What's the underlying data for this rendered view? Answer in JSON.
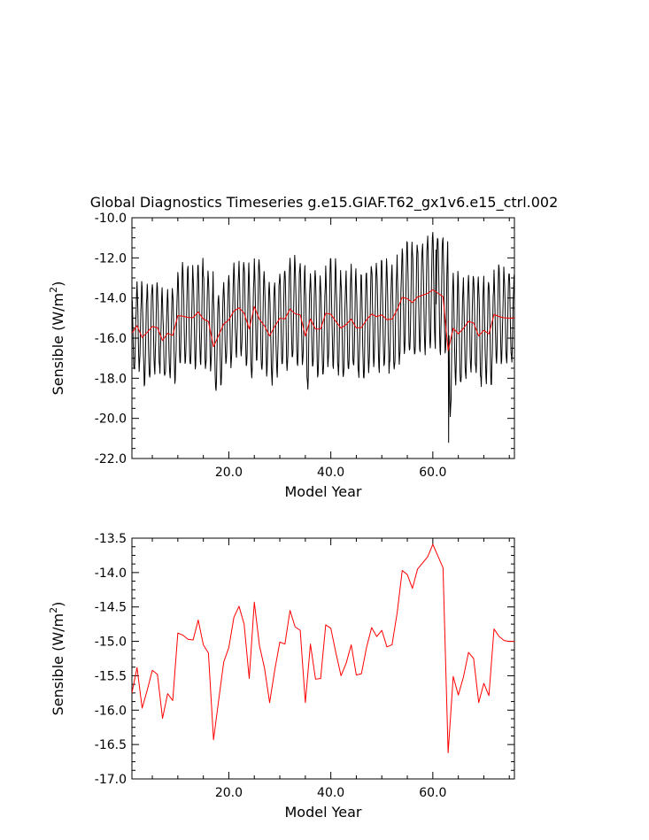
{
  "title": "Global Diagnostics Timeseries g.e15.GIAF.T62_gx1v6.e15_ctrl.002",
  "chart_data": [
    {
      "type": "line",
      "xlabel": "Model Year",
      "ylabel": "Sensible (W/m",
      "ylabel_sup": "2",
      "ylabel_close": ")",
      "xlim": [
        1,
        76
      ],
      "ylim": [
        -22.0,
        -10.0
      ],
      "x_ticks": [
        20,
        40,
        60
      ],
      "x_tick_labels": [
        "20.0",
        "40.0",
        "60.0"
      ],
      "y_ticks": [
        -22,
        -20,
        -18,
        -16,
        -14,
        -12,
        -10
      ],
      "y_tick_labels": [
        "-22.0",
        "-20.0",
        "-18.0",
        "-16.0",
        "-14.0",
        "-12.0",
        "-10.0"
      ],
      "grid": false,
      "series": [
        {
          "color": "#000000",
          "style": "monthly",
          "seasonal_amplitude": [
            2.0,
            2.2,
            2.3,
            2.4,
            2.2,
            2.1,
            2.0,
            2.1,
            2.2,
            2.5,
            2.5,
            2.4,
            2.4,
            2.5,
            2.5,
            2.4,
            2.3,
            2.3,
            2.2,
            2.3,
            2.2,
            2.4,
            2.6,
            2.5,
            2.6,
            2.7,
            2.5,
            2.4,
            2.5,
            2.5,
            2.6,
            2.6,
            2.5,
            2.5,
            2.6,
            2.6,
            2.5,
            2.4,
            2.5,
            2.6,
            2.6,
            2.5,
            2.5,
            2.6,
            2.5,
            2.6,
            2.6,
            2.5,
            2.6,
            2.6,
            2.5,
            2.6,
            2.6,
            2.7,
            2.8,
            2.8,
            2.7,
            2.8,
            2.8,
            2.9,
            2.9,
            3.0,
            3.2,
            2.7,
            2.6,
            2.5,
            2.6,
            2.5,
            2.4,
            2.5,
            2.4,
            2.4,
            2.3,
            2.2,
            2.2,
            2.2
          ],
          "notable": [
            {
              "x": 63.1,
              "y": -21.2
            },
            {
              "x": 60.6,
              "y": -11.6
            }
          ]
        },
        {
          "color": "#ff0000",
          "style": "annual",
          "x": [
            1,
            2,
            3,
            4,
            5,
            6,
            7,
            8,
            9,
            10,
            11,
            12,
            13,
            14,
            15,
            16,
            17,
            18,
            19,
            20,
            21,
            22,
            23,
            24,
            25,
            26,
            27,
            28,
            29,
            30,
            31,
            32,
            33,
            34,
            35,
            36,
            37,
            38,
            39,
            40,
            41,
            42,
            43,
            44,
            45,
            46,
            47,
            48,
            49,
            50,
            51,
            52,
            53,
            54,
            55,
            56,
            57,
            58,
            59,
            60,
            61,
            62,
            63,
            64,
            65,
            66,
            67,
            68,
            69,
            70,
            71,
            72,
            73,
            74,
            75,
            76
          ],
          "values": [
            -15.75,
            -15.38,
            -15.97,
            -15.71,
            -15.42,
            -15.48,
            -16.12,
            -15.76,
            -15.86,
            -14.88,
            -14.91,
            -14.97,
            -14.98,
            -14.69,
            -15.05,
            -15.17,
            -16.43,
            -15.86,
            -15.3,
            -15.09,
            -14.65,
            -14.49,
            -14.75,
            -15.54,
            -14.43,
            -15.06,
            -15.39,
            -15.89,
            -15.42,
            -15.01,
            -15.04,
            -14.55,
            -14.79,
            -14.84,
            -15.89,
            -15.04,
            -15.55,
            -15.54,
            -14.76,
            -14.81,
            -15.17,
            -15.5,
            -15.32,
            -15.05,
            -15.49,
            -15.47,
            -15.09,
            -14.8,
            -14.93,
            -14.84,
            -15.08,
            -15.05,
            -14.59,
            -13.97,
            -14.03,
            -14.23,
            -13.95,
            -13.86,
            -13.77,
            -13.59,
            -13.76,
            -13.93,
            -16.62,
            -15.51,
            -15.78,
            -15.52,
            -15.16,
            -15.25,
            -15.89,
            -15.61,
            -15.79,
            -14.82,
            -14.93,
            -14.99,
            -15.0,
            -15.0
          ]
        }
      ]
    },
    {
      "type": "line",
      "xlabel": "Model Year",
      "ylabel": "Sensible (W/m",
      "ylabel_sup": "2",
      "ylabel_close": ")",
      "xlim": [
        1,
        76
      ],
      "ylim": [
        -17.0,
        -13.5
      ],
      "x_ticks": [
        20,
        40,
        60
      ],
      "x_tick_labels": [
        "20.0",
        "40.0",
        "60.0"
      ],
      "y_ticks": [
        -17.0,
        -16.5,
        -16.0,
        -15.5,
        -15.0,
        -14.5,
        -14.0,
        -13.5
      ],
      "y_tick_labels": [
        "-17.0",
        "-16.5",
        "-16.0",
        "-15.5",
        "-15.0",
        "-14.5",
        "-14.0",
        "-13.5"
      ],
      "grid": false,
      "series": [
        {
          "color": "#ff0000",
          "style": "annual",
          "x": [
            1,
            2,
            3,
            4,
            5,
            6,
            7,
            8,
            9,
            10,
            11,
            12,
            13,
            14,
            15,
            16,
            17,
            18,
            19,
            20,
            21,
            22,
            23,
            24,
            25,
            26,
            27,
            28,
            29,
            30,
            31,
            32,
            33,
            34,
            35,
            36,
            37,
            38,
            39,
            40,
            41,
            42,
            43,
            44,
            45,
            46,
            47,
            48,
            49,
            50,
            51,
            52,
            53,
            54,
            55,
            56,
            57,
            58,
            59,
            60,
            61,
            62,
            63,
            64,
            65,
            66,
            67,
            68,
            69,
            70,
            71,
            72,
            73,
            74,
            75,
            76
          ],
          "values": [
            -15.75,
            -15.38,
            -15.97,
            -15.71,
            -15.42,
            -15.48,
            -16.12,
            -15.76,
            -15.86,
            -14.88,
            -14.91,
            -14.97,
            -14.98,
            -14.69,
            -15.05,
            -15.17,
            -16.43,
            -15.86,
            -15.3,
            -15.09,
            -14.65,
            -14.49,
            -14.75,
            -15.54,
            -14.43,
            -15.06,
            -15.39,
            -15.89,
            -15.42,
            -15.01,
            -15.04,
            -14.55,
            -14.79,
            -14.84,
            -15.89,
            -15.04,
            -15.55,
            -15.54,
            -14.76,
            -14.81,
            -15.17,
            -15.5,
            -15.32,
            -15.05,
            -15.49,
            -15.47,
            -15.09,
            -14.8,
            -14.93,
            -14.84,
            -15.08,
            -15.05,
            -14.59,
            -13.97,
            -14.03,
            -14.23,
            -13.95,
            -13.86,
            -13.77,
            -13.59,
            -13.76,
            -13.93,
            -16.62,
            -15.51,
            -15.78,
            -15.52,
            -15.16,
            -15.25,
            -15.89,
            -15.61,
            -15.79,
            -14.82,
            -14.93,
            -14.99,
            -15.0,
            -15.0
          ]
        }
      ]
    }
  ]
}
